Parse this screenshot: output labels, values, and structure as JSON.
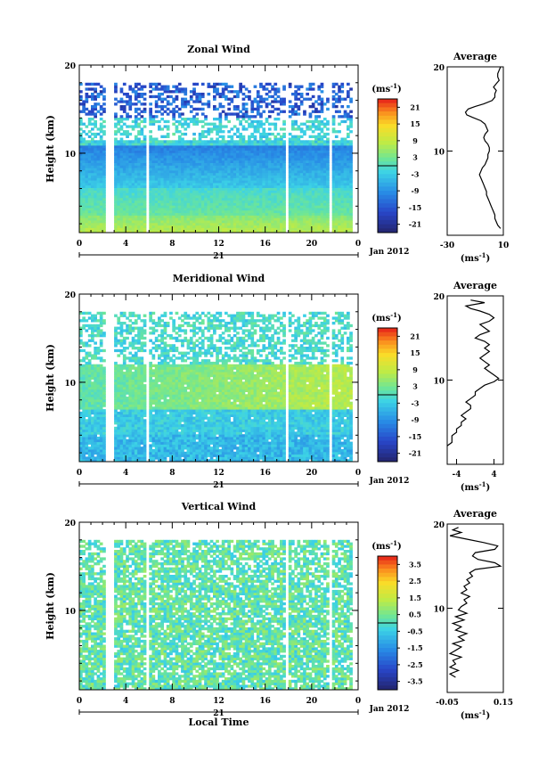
{
  "chart_data": [
    {
      "type": "heatmap",
      "title": "Zonal Wind",
      "ylabel": "Height (km)",
      "xlabel": "",
      "x_ticks": [
        "0",
        "4",
        "8",
        "12",
        "16",
        "20",
        "0"
      ],
      "y_ticks": [
        "20",
        "10"
      ],
      "xlim": [
        0,
        24
      ],
      "ylim": [
        1,
        20
      ],
      "date_label": "21",
      "date_right": "Jan 2012",
      "colorbar": {
        "unit_base": "(ms",
        "unit_exp": "-1",
        "unit_close": ")",
        "ticks": [
          "21",
          "15",
          "9",
          "3",
          "-3",
          "-9",
          "-15",
          "-21"
        ],
        "range": [
          -24,
          24
        ]
      },
      "profile": {
        "title": "Average",
        "x_ticks": [
          "-30",
          "10"
        ],
        "y_ticks": [
          "20",
          "10"
        ],
        "xlim": [
          -30,
          10
        ],
        "ylim": [
          0,
          20
        ],
        "xlabel_base": "(ms",
        "xlabel_exp": "-1",
        "xlabel_close": ")",
        "x": [
          8,
          7,
          6,
          6,
          7,
          5,
          3,
          5,
          4,
          4,
          2,
          -4,
          -10,
          -15,
          -17,
          -16,
          -12,
          -6,
          -3,
          -2,
          -1,
          -3,
          -4,
          -3,
          -1,
          0,
          0,
          -1,
          -1,
          -2,
          -3,
          -5,
          -6,
          -7,
          -6,
          -5,
          -4,
          -3,
          -2,
          -2,
          -1,
          0,
          1,
          2,
          3,
          4,
          4,
          5,
          6,
          8
        ],
        "y": [
          20,
          19.6,
          19.2,
          18.8,
          18.4,
          18,
          17.6,
          17.2,
          16.8,
          16.4,
          16,
          15.6,
          15.3,
          15,
          14.6,
          14.3,
          14,
          13.6,
          13.2,
          12.8,
          12.4,
          12,
          11.6,
          11.2,
          10.8,
          10.4,
          10,
          9.6,
          9.2,
          8.8,
          8.4,
          8,
          7.6,
          7.2,
          6.8,
          6.4,
          6,
          5.6,
          5.2,
          4.8,
          4.4,
          4,
          3.6,
          3.2,
          2.8,
          2.4,
          2,
          1.6,
          1.2,
          0.8
        ]
      }
    },
    {
      "type": "heatmap",
      "title": "Meridional Wind",
      "ylabel": "Height (km)",
      "xlabel": "",
      "x_ticks": [
        "0",
        "4",
        "8",
        "12",
        "16",
        "20",
        "0"
      ],
      "y_ticks": [
        "20",
        "10"
      ],
      "xlim": [
        0,
        24
      ],
      "ylim": [
        1,
        20
      ],
      "date_label": "21",
      "date_right": "Jan 2012",
      "colorbar": {
        "unit_base": "(ms",
        "unit_exp": "-1",
        "unit_close": ")",
        "ticks": [
          "21",
          "15",
          "9",
          "3",
          "-3",
          "-9",
          "-15",
          "-21"
        ],
        "range": [
          -24,
          24
        ]
      },
      "profile": {
        "title": "Average",
        "x_ticks": [
          "-4",
          "4"
        ],
        "y_ticks": [
          "20",
          "10"
        ],
        "xlim": [
          -6,
          6
        ],
        "ylim": [
          0,
          20
        ],
        "xlabel_base": "(ms",
        "xlabel_exp": "-1",
        "xlabel_close": ")",
        "x": [
          -1,
          2,
          -2,
          -1,
          1,
          3,
          4,
          3,
          1,
          2,
          3,
          1,
          0,
          2,
          3,
          2,
          3,
          2,
          1,
          2,
          3,
          2,
          3,
          4,
          5,
          4,
          2,
          1,
          0,
          0,
          -1,
          -2,
          -1,
          -1,
          -2,
          -3,
          -2,
          -3,
          -3,
          -4,
          -4,
          -5,
          -5,
          -5,
          -6
        ],
        "y": [
          19.5,
          19.2,
          18.8,
          18.5,
          18.2,
          17.8,
          17.4,
          17,
          16.6,
          16.2,
          15.8,
          15.4,
          15,
          14.6,
          14.2,
          13.8,
          13.4,
          13,
          12.6,
          12.2,
          11.8,
          11.4,
          11,
          10.6,
          10.2,
          9.8,
          9.4,
          9,
          8.6,
          8.2,
          7.8,
          7.4,
          7,
          6.6,
          6.2,
          5.8,
          5.4,
          5,
          4.6,
          4.2,
          3.8,
          3.4,
          3,
          2.6,
          2.2
        ]
      }
    },
    {
      "type": "heatmap",
      "title": "Vertical Wind",
      "ylabel": "Height (km)",
      "xlabel": "Local Time",
      "x_ticks": [
        "0",
        "4",
        "8",
        "12",
        "16",
        "20",
        "0"
      ],
      "y_ticks": [
        "20",
        "10"
      ],
      "xlim": [
        0,
        24
      ],
      "ylim": [
        1,
        20
      ],
      "date_label": "21",
      "date_right": "Jan 2012",
      "colorbar": {
        "unit_base": "(ms",
        "unit_exp": "-1",
        "unit_close": ")",
        "ticks": [
          "3.5",
          "2.5",
          "1.5",
          "0.5",
          "-0.5",
          "-1.5",
          "-2.5",
          "-3.5"
        ],
        "range": [
          -4,
          4
        ]
      },
      "profile": {
        "title": "Average",
        "x_ticks": [
          "-0.05",
          "0.15"
        ],
        "y_ticks": [
          "20",
          "10"
        ],
        "xlim": [
          -0.05,
          0.15
        ],
        "ylim": [
          0,
          20
        ],
        "xlabel_base": "(ms",
        "xlabel_exp": "-1",
        "xlabel_close": ")",
        "x": [
          -0.01,
          -0.03,
          0.0,
          -0.04,
          0.02,
          0.08,
          0.13,
          0.12,
          0.05,
          0.04,
          0.06,
          0.12,
          0.14,
          0.05,
          0.03,
          0.04,
          0.02,
          0.03,
          0.01,
          0.02,
          0.0,
          0.03,
          0.01,
          0.02,
          0.0,
          -0.01,
          0.02,
          -0.02,
          0.01,
          -0.03,
          0.0,
          -0.02,
          0.02,
          -0.01,
          0.01,
          -0.03,
          0.0,
          -0.02,
          -0.04,
          0.0,
          -0.03,
          -0.02,
          -0.04,
          -0.01,
          -0.04,
          -0.02
        ],
        "y": [
          19.6,
          19.3,
          19,
          18.6,
          18.2,
          17.8,
          17.4,
          17,
          16.6,
          16.2,
          15.8,
          15.4,
          15,
          14.6,
          14.2,
          13.8,
          13.4,
          13,
          12.6,
          12.2,
          11.8,
          11.4,
          11,
          10.6,
          10.2,
          9.8,
          9.4,
          9,
          8.6,
          8.2,
          7.8,
          7.4,
          7,
          6.6,
          6.2,
          5.8,
          5.4,
          5,
          4.6,
          4.2,
          3.8,
          3.4,
          3,
          2.6,
          2.2,
          1.8
        ]
      }
    }
  ]
}
